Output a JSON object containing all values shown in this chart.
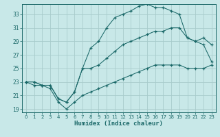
{
  "bg_color": "#c8e8e8",
  "grid_color": "#a8cccc",
  "line_color": "#1a6868",
  "xlabel": "Humidex (Indice chaleur)",
  "xlim": [
    -0.5,
    23.5
  ],
  "ylim": [
    18.5,
    34.5
  ],
  "xticks": [
    0,
    1,
    2,
    3,
    4,
    5,
    6,
    7,
    8,
    9,
    10,
    11,
    12,
    13,
    14,
    15,
    16,
    17,
    18,
    19,
    20,
    21,
    22,
    23
  ],
  "yticks": [
    19,
    21,
    23,
    25,
    27,
    29,
    31,
    33
  ],
  "line1_x": [
    0,
    1,
    2,
    3,
    4,
    5,
    6,
    7,
    8,
    9,
    10,
    11,
    12,
    13,
    14,
    15,
    16,
    17,
    18,
    19,
    20,
    21,
    22,
    23
  ],
  "line1_y": [
    23.0,
    23.0,
    22.5,
    22.5,
    20.5,
    20.0,
    21.5,
    25.0,
    28.0,
    29.0,
    31.0,
    32.5,
    33.0,
    33.5,
    34.2,
    34.5,
    34.0,
    34.0,
    33.5,
    33.0,
    29.5,
    29.0,
    29.5,
    28.5
  ],
  "line2_x": [
    0,
    1,
    2,
    3,
    4,
    5,
    6,
    7,
    8,
    9,
    10,
    11,
    12,
    13,
    14,
    15,
    16,
    17,
    18,
    19,
    20,
    21,
    22,
    23
  ],
  "line2_y": [
    23.0,
    23.0,
    22.5,
    22.5,
    20.5,
    20.0,
    21.5,
    25.0,
    25.0,
    25.5,
    26.5,
    27.5,
    28.5,
    29.0,
    29.5,
    30.0,
    30.5,
    30.5,
    31.0,
    31.0,
    29.5,
    29.0,
    28.5,
    26.0
  ],
  "line3_x": [
    0,
    1,
    2,
    3,
    4,
    5,
    6,
    7,
    8,
    9,
    10,
    11,
    12,
    13,
    14,
    15,
    16,
    17,
    18,
    19,
    20,
    21,
    22,
    23
  ],
  "line3_y": [
    23.0,
    22.5,
    22.5,
    22.0,
    20.0,
    19.0,
    20.0,
    21.0,
    21.5,
    22.0,
    22.5,
    23.0,
    23.5,
    24.0,
    24.5,
    25.0,
    25.5,
    25.5,
    25.5,
    25.5,
    25.0,
    25.0,
    25.0,
    25.5
  ]
}
